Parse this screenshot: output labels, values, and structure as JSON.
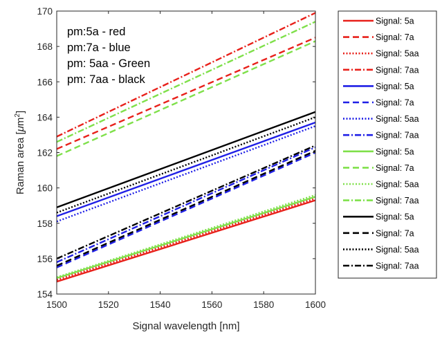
{
  "chart_data": {
    "type": "line",
    "title": "",
    "xlabel": "Signal wavelength [nm]",
    "ylabel_text": "Raman area [",
    "ylabel_mu": "μ",
    "ylabel_unit": "m",
    "ylabel_exp": "2",
    "ylabel_close": "]",
    "xlim": [
      1500,
      1600
    ],
    "ylim": [
      154,
      170
    ],
    "xticks": [
      1500,
      1520,
      1540,
      1560,
      1580,
      1600
    ],
    "yticks": [
      154,
      156,
      158,
      160,
      162,
      164,
      166,
      168,
      170
    ],
    "grid": false,
    "legend_position": "outside-right",
    "annotations": [
      "pm:5a - red",
      "pm:7a - blue",
      "pm: 5aa - Green",
      "pm: 7aa - black"
    ],
    "series": [
      {
        "name": "Signal: 5a",
        "color": "#e8201a",
        "dash": "solid",
        "x": [
          1500,
          1600
        ],
        "y": [
          154.7,
          159.3
        ]
      },
      {
        "name": "Signal: 7a",
        "color": "#e8201a",
        "dash": "dashed",
        "x": [
          1500,
          1600
        ],
        "y": [
          162.2,
          168.5
        ]
      },
      {
        "name": "Signal: 5aa",
        "color": "#e8201a",
        "dash": "dotted",
        "x": [
          1500,
          1600
        ],
        "y": [
          154.8,
          159.4
        ]
      },
      {
        "name": "Signal: 7aa",
        "color": "#e8201a",
        "dash": "dashdot",
        "x": [
          1500,
          1600
        ],
        "y": [
          162.9,
          169.9
        ]
      },
      {
        "name": "Signal: 5a",
        "color": "#1f1fe6",
        "dash": "solid",
        "x": [
          1500,
          1600
        ],
        "y": [
          158.4,
          163.7
        ]
      },
      {
        "name": "Signal: 7a",
        "color": "#1f1fe6",
        "dash": "dashed",
        "x": [
          1500,
          1600
        ],
        "y": [
          155.5,
          162.0
        ]
      },
      {
        "name": "Signal: 5aa",
        "color": "#1f1fe6",
        "dash": "dotted",
        "x": [
          1500,
          1600
        ],
        "y": [
          158.1,
          163.5
        ]
      },
      {
        "name": "Signal: 7aa",
        "color": "#1f1fe6",
        "dash": "dashdot",
        "x": [
          1500,
          1600
        ],
        "y": [
          155.8,
          162.3
        ]
      },
      {
        "name": "Signal: 5a",
        "color": "#7fe04a",
        "dash": "solid",
        "x": [
          1500,
          1600
        ],
        "y": [
          154.9,
          159.5
        ]
      },
      {
        "name": "Signal: 7a",
        "color": "#7fe04a",
        "dash": "dashed",
        "x": [
          1500,
          1600
        ],
        "y": [
          161.8,
          168.3
        ]
      },
      {
        "name": "Signal: 5aa",
        "color": "#7fe04a",
        "dash": "dotted",
        "x": [
          1500,
          1600
        ],
        "y": [
          154.95,
          159.6
        ]
      },
      {
        "name": "Signal: 7aa",
        "color": "#7fe04a",
        "dash": "dashdot",
        "x": [
          1500,
          1600
        ],
        "y": [
          162.6,
          169.4
        ]
      },
      {
        "name": "Signal: 5a",
        "color": "#000000",
        "dash": "solid",
        "x": [
          1500,
          1600
        ],
        "y": [
          158.9,
          164.3
        ]
      },
      {
        "name": "Signal: 7a",
        "color": "#000000",
        "dash": "dashed",
        "x": [
          1500,
          1600
        ],
        "y": [
          155.6,
          162.1
        ]
      },
      {
        "name": "Signal: 5aa",
        "color": "#000000",
        "dash": "dotted",
        "x": [
          1500,
          1600
        ],
        "y": [
          158.6,
          164.0
        ]
      },
      {
        "name": "Signal: 7aa",
        "color": "#000000",
        "dash": "dashdot",
        "x": [
          1500,
          1600
        ],
        "y": [
          156.0,
          162.4
        ]
      }
    ]
  }
}
